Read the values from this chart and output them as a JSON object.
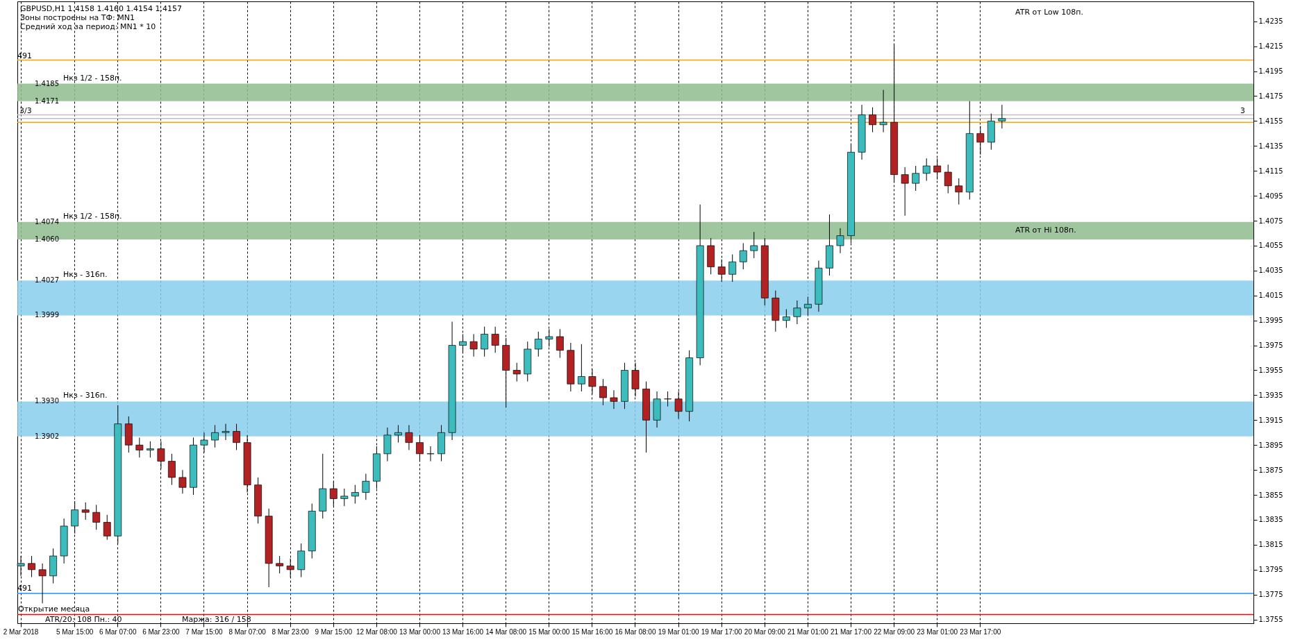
{
  "chart_data": {
    "type": "candlestick",
    "title": "GBPUSD,H1  1.4158 1.4160 1.4154 1.4157",
    "categories": [
      "2 Mar 2018",
      null,
      null,
      null,
      null,
      "5 Mar 15:00",
      null,
      null,
      null,
      "6 Mar 07:00",
      null,
      null,
      null,
      "6 Mar 23:00",
      null,
      null,
      null,
      "7 Mar 15:00",
      null,
      null,
      null,
      "8 Mar 07:00",
      null,
      null,
      null,
      "8 Mar 23:00",
      null,
      null,
      null,
      "9 Mar 15:00",
      null,
      null,
      null,
      "12 Mar 08:00",
      null,
      null,
      null,
      "13 Mar 00:00",
      null,
      null,
      null,
      "13 Mar 16:00",
      null,
      null,
      null,
      "14 Mar 08:00",
      null,
      null,
      null,
      "15 Mar 00:00",
      null,
      null,
      null,
      "15 Mar 16:00",
      null,
      null,
      null,
      "16 Mar 08:00",
      null,
      null,
      null,
      "19 Mar 01:00",
      null,
      null,
      null,
      "19 Mar 17:00",
      null,
      null,
      null,
      "20 Mar 09:00",
      null,
      null,
      null,
      "21 Mar 01:00",
      null,
      null,
      null,
      "21 Mar 17:00",
      null,
      null,
      null,
      "22 Mar 09:00",
      null,
      null,
      null,
      "23 Mar 01:00",
      null,
      null,
      null,
      "23 Mar 17:00",
      null,
      null,
      null,
      null,
      null,
      null,
      null,
      null,
      null,
      null,
      null,
      null,
      null,
      null,
      null,
      null,
      null,
      null,
      null,
      null,
      null,
      null,
      null,
      null,
      null
    ],
    "ohlc": [
      [
        1.3798,
        1.3806,
        1.379,
        1.38
      ],
      [
        1.38,
        1.3806,
        1.3789,
        1.3795
      ],
      [
        1.3795,
        1.38,
        1.3768,
        1.379
      ],
      [
        1.379,
        1.3812,
        1.3784,
        1.3806
      ],
      [
        1.3806,
        1.3836,
        1.38,
        1.383
      ],
      [
        1.383,
        1.385,
        1.3824,
        1.3843
      ],
      [
        1.3843,
        1.3849,
        1.3835,
        1.3841
      ],
      [
        1.3841,
        1.3847,
        1.3827,
        1.3833
      ],
      [
        1.3833,
        1.3839,
        1.3819,
        1.3822
      ],
      [
        1.3822,
        1.3927,
        1.3816,
        1.3912
      ],
      [
        1.3912,
        1.3918,
        1.3889,
        1.3895
      ],
      [
        1.3895,
        1.3901,
        1.3885,
        1.3891
      ],
      [
        1.3891,
        1.3898,
        1.3885,
        1.3892
      ],
      [
        1.3892,
        1.3898,
        1.3876,
        1.3882
      ],
      [
        1.3882,
        1.3888,
        1.3863,
        1.3869
      ],
      [
        1.3869,
        1.3875,
        1.3856,
        1.3861
      ],
      [
        1.3861,
        1.3901,
        1.3855,
        1.3895
      ],
      [
        1.3895,
        1.3905,
        1.3889,
        1.3899
      ],
      [
        1.3899,
        1.3911,
        1.3893,
        1.3905
      ],
      [
        1.3905,
        1.3912,
        1.3899,
        1.3906
      ],
      [
        1.3906,
        1.3912,
        1.3891,
        1.3897
      ],
      [
        1.3897,
        1.3903,
        1.3857,
        1.3863
      ],
      [
        1.3863,
        1.3869,
        1.3832,
        1.3838
      ],
      [
        1.3838,
        1.3844,
        1.3781,
        1.38
      ],
      [
        1.38,
        1.3806,
        1.3792,
        1.3798
      ],
      [
        1.3798,
        1.3804,
        1.3789,
        1.3795
      ],
      [
        1.3795,
        1.3816,
        1.3789,
        1.381
      ],
      [
        1.381,
        1.3848,
        1.3804,
        1.3842
      ],
      [
        1.3842,
        1.3888,
        1.3836,
        1.386
      ],
      [
        1.386,
        1.3866,
        1.3846,
        1.3852
      ],
      [
        1.3852,
        1.386,
        1.3846,
        1.3854
      ],
      [
        1.3854,
        1.3863,
        1.3848,
        1.3857
      ],
      [
        1.3857,
        1.3872,
        1.3851,
        1.3866
      ],
      [
        1.3866,
        1.3894,
        1.386,
        1.3888
      ],
      [
        1.3888,
        1.3909,
        1.3882,
        1.3903
      ],
      [
        1.3903,
        1.3911,
        1.3897,
        1.3905
      ],
      [
        1.3905,
        1.3911,
        1.3891,
        1.3897
      ],
      [
        1.3897,
        1.3903,
        1.3882,
        1.3888
      ],
      [
        1.3888,
        1.3894,
        1.3882,
        1.3888
      ],
      [
        1.3888,
        1.3911,
        1.3882,
        1.3905
      ],
      [
        1.3905,
        1.3994,
        1.3899,
        1.3975
      ],
      [
        1.3975,
        1.3984,
        1.3969,
        1.3978
      ],
      [
        1.3978,
        1.3984,
        1.3966,
        1.3972
      ],
      [
        1.3972,
        1.399,
        1.3966,
        1.3984
      ],
      [
        1.3984,
        1.399,
        1.3969,
        1.3975
      ],
      [
        1.3975,
        1.3981,
        1.3925,
        1.3955
      ],
      [
        1.3955,
        1.3961,
        1.3946,
        1.3952
      ],
      [
        1.3952,
        1.3978,
        1.3946,
        1.3972
      ],
      [
        1.3972,
        1.3986,
        1.3966,
        1.398
      ],
      [
        1.398,
        1.3988,
        1.3974,
        1.3982
      ],
      [
        1.3982,
        1.3988,
        1.3965,
        1.3971
      ],
      [
        1.3971,
        1.3977,
        1.3938,
        1.3944
      ],
      [
        1.3944,
        1.3976,
        1.3938,
        1.395
      ],
      [
        1.395,
        1.3956,
        1.3936,
        1.3942
      ],
      [
        1.3942,
        1.3948,
        1.3927,
        1.3933
      ],
      [
        1.3933,
        1.3939,
        1.3924,
        1.393
      ],
      [
        1.393,
        1.3961,
        1.3924,
        1.3955
      ],
      [
        1.3955,
        1.3961,
        1.3934,
        1.394
      ],
      [
        1.394,
        1.3946,
        1.3889,
        1.3915
      ],
      [
        1.3915,
        1.3938,
        1.3909,
        1.3932
      ],
      [
        1.3932,
        1.3938,
        1.3926,
        1.3932
      ],
      [
        1.3932,
        1.3938,
        1.3916,
        1.3922
      ],
      [
        1.3922,
        1.3971,
        1.3914,
        1.3965
      ],
      [
        1.3965,
        1.4088,
        1.3959,
        1.4055
      ],
      [
        1.4055,
        1.4061,
        1.4032,
        1.4038
      ],
      [
        1.4038,
        1.4044,
        1.4026,
        1.4032
      ],
      [
        1.4032,
        1.4048,
        1.4026,
        1.4042
      ],
      [
        1.4042,
        1.4057,
        1.4036,
        1.4051
      ],
      [
        1.4051,
        1.4066,
        1.4045,
        1.4055
      ],
      [
        1.4055,
        1.4061,
        1.4007,
        1.4013
      ],
      [
        1.4013,
        1.4019,
        1.3986,
        1.3995
      ],
      [
        1.3995,
        1.4004,
        1.3989,
        1.3998
      ],
      [
        1.3998,
        1.4011,
        1.3992,
        1.4005
      ],
      [
        1.4005,
        1.4014,
        1.3999,
        1.4008
      ],
      [
        1.4008,
        1.4043,
        1.4002,
        1.4037
      ],
      [
        1.4037,
        1.408,
        1.4031,
        1.4055
      ],
      [
        1.4055,
        1.4069,
        1.4049,
        1.4063
      ],
      [
        1.4063,
        1.4136,
        1.4057,
        1.413
      ],
      [
        1.413,
        1.4168,
        1.4124,
        1.416
      ],
      [
        1.416,
        1.4166,
        1.4146,
        1.4152
      ],
      [
        1.4152,
        1.418,
        1.4146,
        1.4154
      ],
      [
        1.4154,
        1.4216,
        1.4106,
        1.4112
      ],
      [
        1.4112,
        1.4118,
        1.4079,
        1.4105
      ],
      [
        1.4105,
        1.4119,
        1.4099,
        1.4113
      ],
      [
        1.4113,
        1.4125,
        1.4107,
        1.4119
      ],
      [
        1.4119,
        1.4125,
        1.4108,
        1.4114
      ],
      [
        1.4114,
        1.412,
        1.4097,
        1.4103
      ],
      [
        1.4103,
        1.4109,
        1.4088,
        1.4098
      ],
      [
        1.4098,
        1.4171,
        1.4092,
        1.4145
      ],
      [
        1.4145,
        1.4151,
        1.4128,
        1.4138
      ],
      [
        1.4138,
        1.4161,
        1.4132,
        1.4155
      ],
      [
        1.4155,
        1.4168,
        1.4149,
        1.4157
      ],
      null,
      null,
      null,
      null,
      null,
      null,
      null,
      null,
      null,
      null,
      null,
      null,
      null,
      null,
      null,
      null,
      null,
      null,
      null,
      null,
      null,
      null,
      null
    ],
    "ylim": [
      1.3752,
      1.4251
    ],
    "yticks": [
      1.3755,
      1.3775,
      1.3795,
      1.3815,
      1.3835,
      1.3855,
      1.3875,
      1.3895,
      1.3915,
      1.3935,
      1.3955,
      1.3975,
      1.3995,
      1.4015,
      1.4035,
      1.4055,
      1.4075,
      1.4095,
      1.4115,
      1.4135,
      1.4155,
      1.4175,
      1.4195,
      1.4215,
      1.4235
    ],
    "grid": "x",
    "ref_lines": [
      {
        "axis": "y",
        "value": 1.4204,
        "color": "#ffa500"
      },
      {
        "axis": "y",
        "value": 1.416,
        "color": "#c0c0c0"
      },
      {
        "axis": "y",
        "value": 1.4157,
        "color": "#c0c0c0"
      },
      {
        "axis": "y",
        "value": 1.4154,
        "color": "#ffa500"
      },
      {
        "axis": "y",
        "value": 1.3776,
        "color": "#1e90ff"
      },
      {
        "axis": "y",
        "value": 1.3759,
        "label": "Открытие месяца",
        "color": "#ff0000"
      }
    ],
    "bands": [
      {
        "axis": "y",
        "from": 1.4171,
        "to": 1.4185,
        "label": "Нкз 1/2 - 158п.",
        "color": "#8fbc8f"
      },
      {
        "axis": "y",
        "from": 1.406,
        "to": 1.4074,
        "label": "Нкз 1/2 - 158п.",
        "color": "#8fbc8f"
      },
      {
        "axis": "y",
        "from": 1.3999,
        "to": 1.4027,
        "label": "Нкз - 316п.",
        "color": "#87ceeb"
      },
      {
        "axis": "y",
        "from": 1.3902,
        "to": 1.393,
        "label": "Нкз - 316п.",
        "color": "#87ceeb"
      }
    ],
    "annotations": [
      "Зоны построены на ТФ: MN1",
      "Средний ход за период: MN1 * 10",
      "ATR/20: 108  Пн.: 40",
      "Маржа: 316 / 158",
      "491",
      "3/3",
      "491",
      "3",
      "ATR от Low 108п.",
      "ATR от Hi 108п.",
      {
        "text": "1.4185",
        "y": 1.4185
      },
      {
        "text": "1.4171",
        "y": 1.4171
      },
      {
        "text": "1.4074",
        "y": 1.4074
      },
      {
        "text": "1.4060",
        "y": 1.406
      },
      {
        "text": "1.4027",
        "y": 1.4027
      },
      {
        "text": "1.3999",
        "y": 1.3999
      },
      {
        "text": "1.3930",
        "y": 1.393
      },
      {
        "text": "1.3902",
        "y": 1.3902
      }
    ]
  }
}
